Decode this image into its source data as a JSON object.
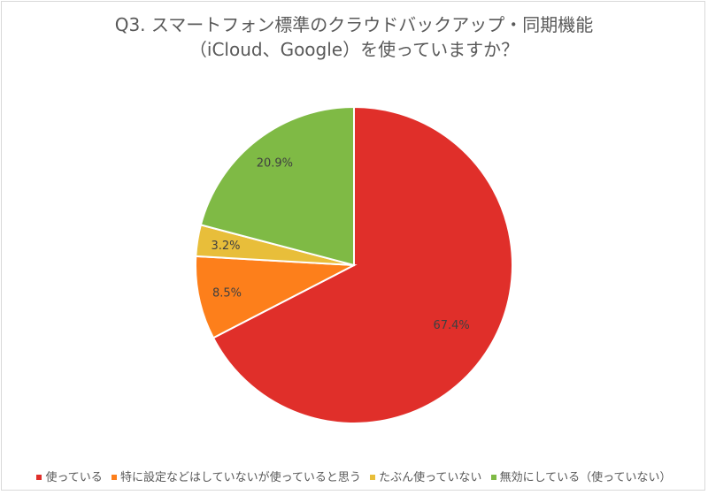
{
  "title": {
    "line1": "Q3. スマートフォン標準のクラウドバックアップ・同期機能",
    "line2": "（iCloud、Google）を使っていますか？"
  },
  "chart_data": {
    "type": "pie",
    "title": "Q3. スマートフォン標準のクラウドバックアップ・同期機能（iCloud、Google）を使っていますか？",
    "categories": [
      "使っている",
      "特に設定などはしていないが使っていると思う",
      "たぶん使っていない",
      "無効にしている（使っていない）"
    ],
    "values": [
      67.4,
      8.5,
      3.2,
      20.9
    ],
    "labels": [
      "67.4%",
      "8.5%",
      "3.2%",
      "20.9%"
    ],
    "colors": [
      "#e02f2a",
      "#fd7f1b",
      "#e8be3a",
      "#7fba45"
    ],
    "start_angle_deg": 0,
    "direction": "clockwise",
    "legend_position": "bottom"
  },
  "legend": {
    "items": [
      {
        "label": "使っている",
        "color": "#e02f2a"
      },
      {
        "label": "特に設定などはしていないが使っていると思う",
        "color": "#fd7f1b"
      },
      {
        "label": "たぶん使っていない",
        "color": "#e8be3a"
      },
      {
        "label": "無効にしている（使っていない）",
        "color": "#7fba45"
      }
    ]
  }
}
